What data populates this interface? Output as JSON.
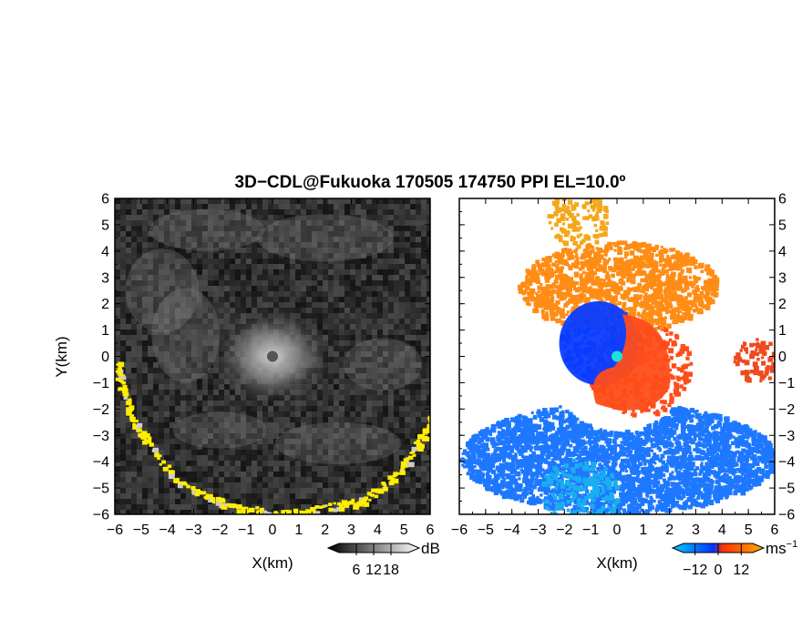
{
  "figure": {
    "title": "3D−CDL@Fukuoka 170505 174750 PPI EL=10.0º"
  },
  "chart_data": [
    {
      "type": "heatmap",
      "panel": "left",
      "variable": "reflectivity-like intensity (grayscale) with yellow clutter",
      "xlabel": "X(km)",
      "ylabel": "Y(km)",
      "xlim": [
        -6,
        6
      ],
      "ylim": [
        -6,
        6
      ],
      "xticks": [
        -6,
        -5,
        -4,
        -3,
        -2,
        -1,
        0,
        1,
        2,
        3,
        4,
        5,
        6
      ],
      "yticks": [
        -6,
        -5,
        -4,
        -3,
        -2,
        -1,
        0,
        1,
        2,
        3,
        4,
        5,
        6
      ],
      "colorbar": {
        "unit": "dB",
        "ticks": [
          6,
          12,
          18
        ],
        "range": [
          0,
          24
        ],
        "colors": [
          "#000000",
          "#ffffff"
        ]
      },
      "features": {
        "bright_center_km": [
          0,
          0
        ],
        "bright_center_radius_km": 1.5,
        "radar_marker_color": "#555555",
        "clutter_color": "#ffee00",
        "clutter_arc": [
          [
            -6,
            -0.2
          ],
          [
            -5.8,
            -1.2
          ],
          [
            -5.3,
            -2.5
          ],
          [
            -4.8,
            -3.2
          ],
          [
            -3.8,
            -4.6
          ],
          [
            -2.5,
            -5.3
          ],
          [
            -1.5,
            -5.7
          ],
          [
            0,
            -5.9
          ],
          [
            1,
            -5.9
          ],
          [
            2.5,
            -5.6
          ],
          [
            3.5,
            -5.4
          ],
          [
            4.3,
            -4.8
          ],
          [
            5.2,
            -3.8
          ],
          [
            5.8,
            -2.8
          ],
          [
            6,
            -2.2
          ]
        ]
      }
    },
    {
      "type": "heatmap",
      "panel": "right",
      "variable": "Doppler velocity",
      "xlabel": "X(km)",
      "xlim": [
        -6,
        6
      ],
      "ylim": [
        -6,
        6
      ],
      "xticks": [
        -6,
        -5,
        -4,
        -3,
        -2,
        -1,
        0,
        1,
        2,
        3,
        4,
        5,
        6
      ],
      "yticks": [
        -6,
        -5,
        -4,
        -3,
        -2,
        -1,
        0,
        1,
        2,
        3,
        4,
        5,
        6
      ],
      "colorbar": {
        "unit": "ms",
        "unit_exponent": "−1",
        "ticks": [
          -12,
          0,
          12
        ],
        "tick_labels": [
          "−12",
          "0",
          "12"
        ],
        "range": [
          -18,
          18
        ],
        "colors": [
          "#00ccff",
          "#0033ff",
          "#ff3300",
          "#ffaa00"
        ]
      },
      "features": {
        "radar_marker_color": "#22dddd",
        "regions": [
          {
            "name": "approaching core",
            "color": "#0a3cff",
            "center_km": [
              -0.6,
              0.5
            ],
            "radius_km": 1.6
          },
          {
            "name": "receding core",
            "color": "#ff4d1a",
            "center_km": [
              0.8,
              -0.4
            ],
            "radius_km": 2.0
          },
          {
            "name": "upper receding band",
            "color": "#ff8c14",
            "center_km": [
              0,
              2.7
            ],
            "radius_km": 3.8
          },
          {
            "name": "top receding patch",
            "color": "#f5a71a",
            "center_km": [
              -1.5,
              5.3
            ],
            "radius_km": 1.2
          },
          {
            "name": "right receding patch",
            "color": "#ee4a1f",
            "center_km": [
              5.3,
              -0.1
            ],
            "radius_km": 0.9
          },
          {
            "name": "lower approaching arc",
            "color": "#1e78ff",
            "center_km": [
              0,
              -3.8
            ],
            "radius_km": 6.0
          },
          {
            "name": "far lower approaching",
            "color": "#19aef0",
            "center_km": [
              -1.5,
              -5.2
            ],
            "radius_km": 1.5
          }
        ]
      }
    }
  ]
}
